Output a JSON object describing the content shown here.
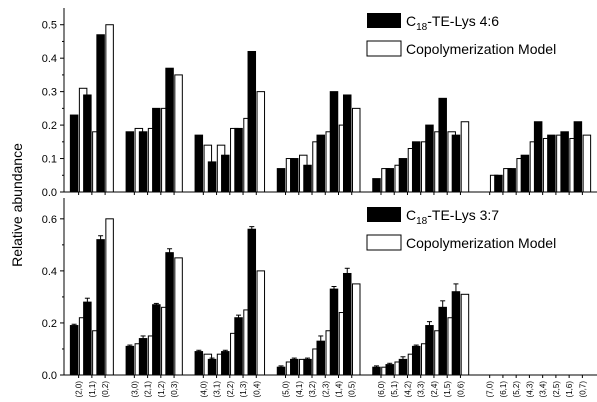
{
  "chart_data": [
    {
      "type": "bar",
      "panel": "top",
      "ylabel": "Relative abundance",
      "ylim": [
        0,
        0.55
      ],
      "yticks": [
        "0.0",
        "0.1",
        "0.2",
        "0.3",
        "0.4",
        "0.5"
      ],
      "categories": [
        "(2,0)",
        "(1,1)",
        "(0,2)",
        "(3,0)",
        "(2,1)",
        "(1,2)",
        "(0,3)",
        "(4,0)",
        "(3,1)",
        "(2,2)",
        "(1,3)",
        "(0,4)",
        "(5,0)",
        "(4,1)",
        "(3,2)",
        "(2,3)",
        "(1,4)",
        "(0,5)",
        "(6,0)",
        "(5,1)",
        "(4,2)",
        "(3,3)",
        "(2,4)",
        "(1,5)",
        "(0,6)",
        "(7,0)",
        "(6,1)",
        "(5,2)",
        "(4,3)",
        "(3,4)",
        "(2,5)",
        "(1,6)",
        "(0,7)"
      ],
      "groups": [
        3,
        4,
        5,
        6,
        7,
        8
      ],
      "legend_placement": "top-right",
      "series": [
        {
          "name": "C18-TE-Lys 4:6",
          "fill": "#000000",
          "values": [
            0.23,
            0.29,
            0.47,
            0.18,
            0.18,
            0.25,
            0.37,
            0.17,
            0.09,
            0.11,
            0.19,
            0.42,
            0.07,
            0.1,
            0.08,
            0.17,
            0.3,
            0.29,
            0.04,
            0.07,
            0.1,
            0.15,
            0.2,
            0.28,
            0.17,
            0.0,
            0.05,
            0.07,
            0.11,
            0.21,
            0.17,
            0.18,
            0.21
          ]
        },
        {
          "name": "Copolymerization Model",
          "fill": "#ffffff",
          "values": [
            0.31,
            0.18,
            0.5,
            0.19,
            0.19,
            0.25,
            0.35,
            0.14,
            0.14,
            0.19,
            0.22,
            0.3,
            0.1,
            0.11,
            0.15,
            0.18,
            0.2,
            0.25,
            0.07,
            0.08,
            0.13,
            0.15,
            0.18,
            0.18,
            0.21,
            0.05,
            0.07,
            0.1,
            0.15,
            0.16,
            0.17,
            0.16,
            0.17
          ]
        }
      ]
    },
    {
      "type": "bar",
      "panel": "bottom",
      "ylabel": "Relative abundance",
      "ylim": [
        0,
        0.68
      ],
      "yticks": [
        "0.0",
        "0.2",
        "0.4",
        "0.6"
      ],
      "categories": [
        "(2,0)",
        "(1,1)",
        "(0,2)",
        "(3,0)",
        "(2,1)",
        "(1,2)",
        "(0,3)",
        "(4,0)",
        "(3,1)",
        "(2,2)",
        "(1,3)",
        "(0,4)",
        "(5,0)",
        "(4,1)",
        "(3,2)",
        "(2,3)",
        "(1,4)",
        "(0,5)",
        "(6,0)",
        "(5,1)",
        "(4,2)",
        "(3,3)",
        "(2,4)",
        "(1,5)",
        "(0,6)",
        "(7,0)",
        "(6,1)",
        "(5,2)",
        "(4,3)",
        "(3,4)",
        "(2,5)",
        "(1,6)",
        "(0,7)"
      ],
      "groups": [
        3,
        4,
        5,
        6,
        7,
        8
      ],
      "legend_placement": "top-right",
      "series": [
        {
          "name": "C18-TE-Lys 3:7",
          "fill": "#000000",
          "values": [
            0.19,
            0.28,
            0.52,
            0.11,
            0.14,
            0.27,
            0.47,
            0.09,
            0.06,
            0.09,
            0.22,
            0.56,
            0.03,
            0.06,
            0.06,
            0.13,
            0.33,
            0.39,
            0.03,
            0.04,
            0.06,
            0.11,
            0.19,
            0.26,
            0.32,
            0.0,
            0.0,
            0.0,
            0.0,
            0.0,
            0.0,
            0.0,
            0.0
          ],
          "errors": [
            0.005,
            0.015,
            0.015,
            0.005,
            0.01,
            0.005,
            0.015,
            0.005,
            0.005,
            0.005,
            0.01,
            0.01,
            0.005,
            0.005,
            0.005,
            0.02,
            0.01,
            0.02,
            0.005,
            0.005,
            0.01,
            0.005,
            0.015,
            0.025,
            0.03,
            0,
            0,
            0,
            0,
            0,
            0,
            0,
            0
          ]
        },
        {
          "name": "Copolymerization Model",
          "fill": "#ffffff",
          "values": [
            0.22,
            0.17,
            0.6,
            0.12,
            0.15,
            0.26,
            0.45,
            0.08,
            0.08,
            0.16,
            0.25,
            0.4,
            0.05,
            0.06,
            0.1,
            0.17,
            0.24,
            0.35,
            0.03,
            0.05,
            0.08,
            0.12,
            0.17,
            0.22,
            0.31,
            0.0,
            0.0,
            0.0,
            0.0,
            0.0,
            0.0,
            0.0,
            0.0
          ]
        }
      ]
    }
  ]
}
